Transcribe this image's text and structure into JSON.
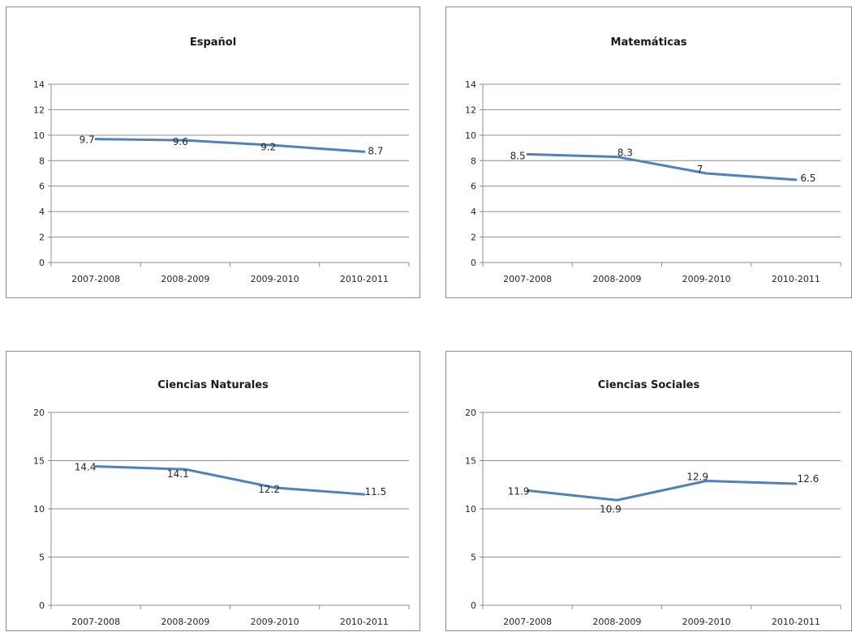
{
  "chart_data": [
    {
      "type": "line",
      "title": "Español",
      "categories": [
        "2007-2008",
        "2008-2009",
        "2009-2010",
        "2010-2011"
      ],
      "series": [
        {
          "values": [
            9.7,
            9.6,
            9.2,
            8.7
          ]
        }
      ],
      "data_labels": [
        "9.7",
        "9.6",
        "9.2",
        "8.7"
      ],
      "ylim": [
        0,
        14
      ],
      "yticks": [
        0,
        2,
        4,
        6,
        8,
        10,
        12,
        14
      ],
      "grid": true,
      "color": "#4f81bd"
    },
    {
      "type": "line",
      "title": "Matemáticas",
      "categories": [
        "2007-2008",
        "2008-2009",
        "2009-2010",
        "2010-2011"
      ],
      "series": [
        {
          "values": [
            8.5,
            8.3,
            7,
            6.5
          ]
        }
      ],
      "data_labels": [
        "8.5",
        "8.3",
        "7",
        "6.5"
      ],
      "ylim": [
        0,
        14
      ],
      "yticks": [
        0,
        2,
        4,
        6,
        8,
        10,
        12,
        14
      ],
      "grid": true,
      "color": "#4f81bd"
    },
    {
      "type": "line",
      "title": "Ciencias Naturales",
      "categories": [
        "2007-2008",
        "2008-2009",
        "2009-2010",
        "2010-2011"
      ],
      "series": [
        {
          "values": [
            14.4,
            14.1,
            12.2,
            11.5
          ]
        }
      ],
      "data_labels": [
        "14.4",
        "14.1",
        "12.2",
        "11.5"
      ],
      "ylim": [
        0,
        20
      ],
      "yticks": [
        0,
        5,
        10,
        15,
        20
      ],
      "grid": true,
      "color": "#4f81bd"
    },
    {
      "type": "line",
      "title": "Ciencias Sociales",
      "categories": [
        "2007-2008",
        "2008-2009",
        "2009-2010",
        "2010-2011"
      ],
      "series": [
        {
          "values": [
            11.9,
            10.9,
            12.9,
            12.6
          ]
        }
      ],
      "data_labels": [
        "11.9",
        "10.9",
        "12.9",
        "12.6"
      ],
      "ylim": [
        0,
        20
      ],
      "yticks": [
        0,
        5,
        10,
        15,
        20
      ],
      "grid": true,
      "color": "#4f81bd"
    }
  ]
}
